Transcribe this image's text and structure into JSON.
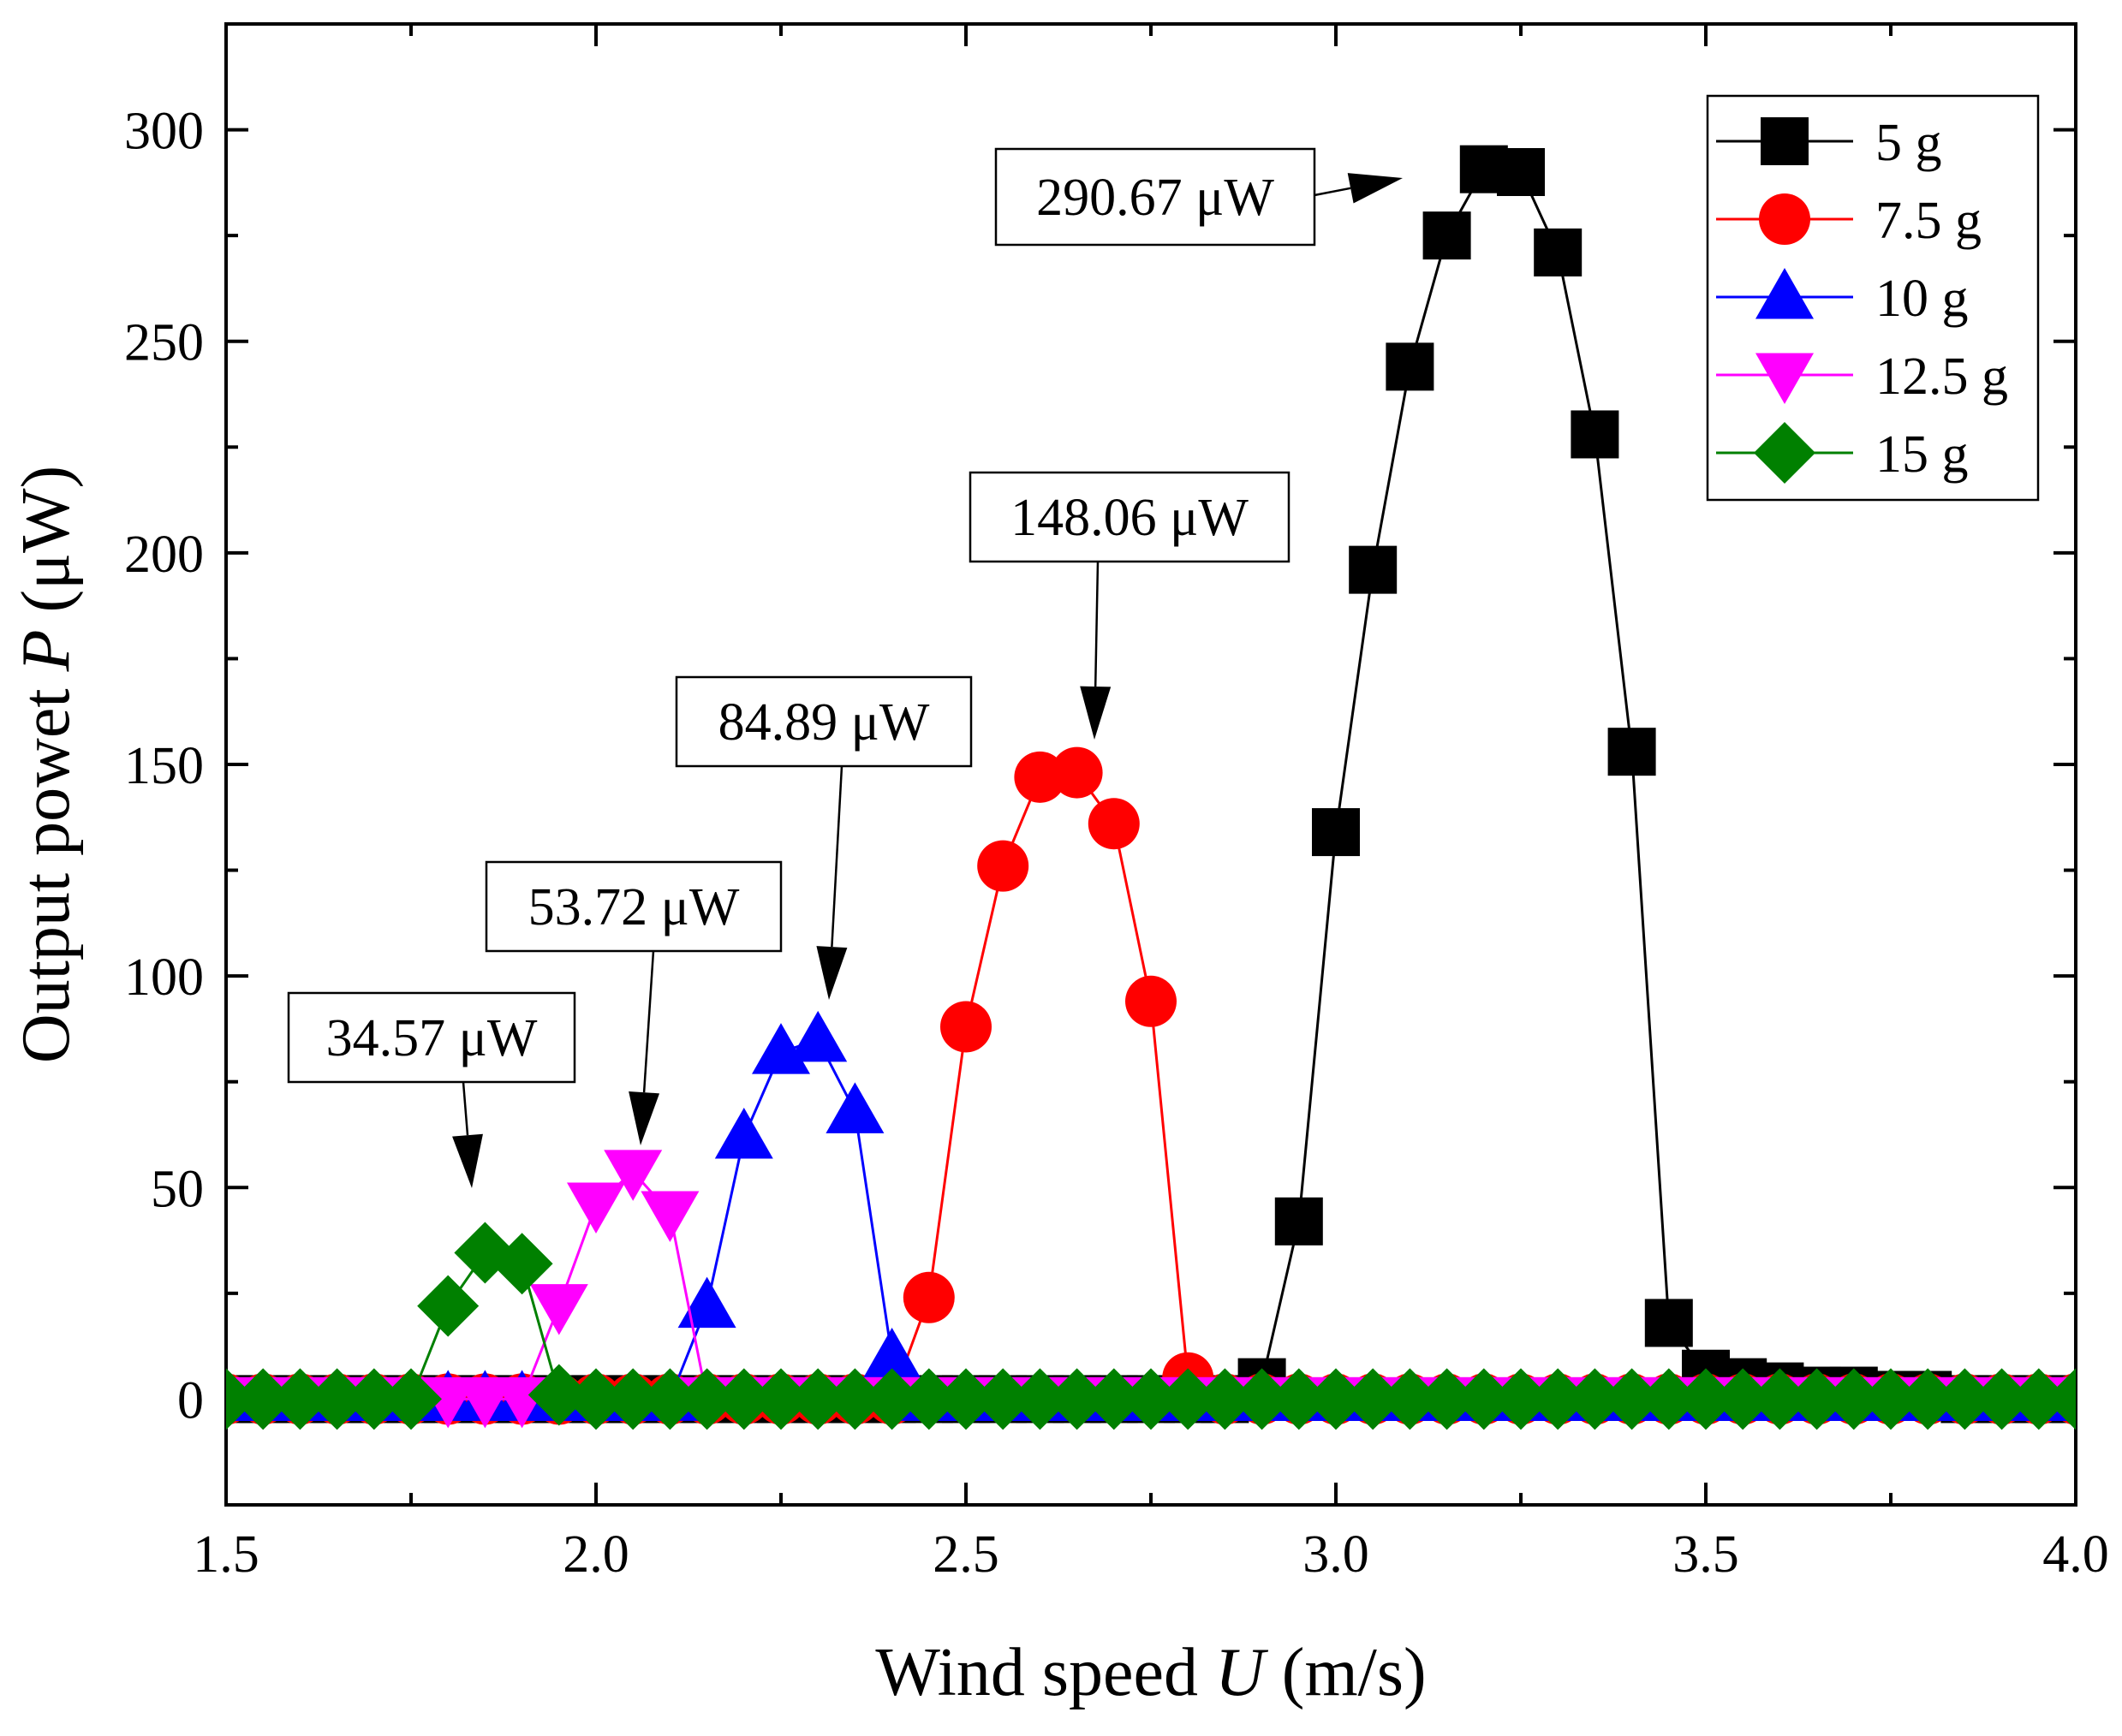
{
  "chart_data": {
    "type": "line",
    "title": "",
    "xlabel": "Wind speed U (m/s)",
    "xlabel_parts": [
      "Wind speed ",
      "U",
      " (m/s)"
    ],
    "ylabel": "Output powet P (μW)",
    "ylabel_parts": [
      "Output powet ",
      "P",
      " (μW)"
    ],
    "xlim": [
      1.5,
      4.0
    ],
    "ylim": [
      -25,
      325
    ],
    "xticks": [
      1.5,
      2.0,
      2.5,
      3.0,
      3.5,
      4.0
    ],
    "xtick_labels": [
      "1.5",
      "2.0",
      "2.5",
      "3.0",
      "3.5",
      "4.0"
    ],
    "yticks": [
      0,
      50,
      100,
      150,
      200,
      250,
      300
    ],
    "ytick_labels": [
      "0",
      "50",
      "100",
      "150",
      "200",
      "250",
      "300"
    ],
    "legend_position": "top-right",
    "series": [
      {
        "name": "5 g",
        "color": "#000000",
        "marker": "square",
        "x": [
          1.5,
          1.55,
          1.6,
          1.65,
          1.7,
          1.75,
          1.8,
          1.85,
          1.9,
          1.95,
          2.0,
          2.05,
          2.1,
          2.15,
          2.2,
          2.25,
          2.3,
          2.35,
          2.4,
          2.45,
          2.5,
          2.55,
          2.6,
          2.65,
          2.7,
          2.75,
          2.8,
          2.85,
          2.9,
          2.95,
          3.0,
          3.05,
          3.1,
          3.15,
          3.2,
          3.25,
          3.3,
          3.35,
          3.4,
          3.45,
          3.5,
          3.55,
          3.6,
          3.65,
          3.7,
          3.75,
          3.8,
          3.85,
          3.9,
          3.95,
          4.0
        ],
        "y": [
          0,
          0,
          0,
          0,
          0,
          0,
          0,
          0,
          0,
          0,
          0,
          0,
          0,
          0,
          0,
          0,
          0,
          0,
          0,
          0,
          0,
          0,
          0,
          0,
          0,
          0,
          0,
          0,
          4,
          42,
          134,
          196,
          244,
          275,
          290.67,
          290,
          271,
          228,
          153,
          18,
          6,
          4,
          3,
          2,
          2,
          1,
          1,
          0,
          0,
          0,
          0
        ]
      },
      {
        "name": "7.5 g",
        "color": "#ff0000",
        "marker": "circle",
        "x": [
          1.5,
          1.55,
          1.6,
          1.65,
          1.7,
          1.75,
          1.8,
          1.85,
          1.9,
          1.95,
          2.0,
          2.05,
          2.1,
          2.15,
          2.2,
          2.25,
          2.3,
          2.35,
          2.4,
          2.45,
          2.5,
          2.55,
          2.6,
          2.65,
          2.7,
          2.75,
          2.8,
          2.85,
          2.9,
          2.95,
          3.0,
          3.05,
          3.1,
          3.15,
          3.2,
          3.25,
          3.3,
          3.35,
          3.4,
          3.45,
          3.5,
          3.55,
          3.6,
          3.65,
          3.7,
          3.75,
          3.8,
          3.85,
          3.9,
          3.95,
          4.0
        ],
        "y": [
          0,
          0,
          0,
          0,
          0,
          0,
          0,
          0,
          0,
          0,
          0,
          0,
          0,
          0,
          0,
          0,
          0,
          0,
          0,
          24,
          88,
          126,
          147,
          148.06,
          136,
          94,
          5,
          0,
          0,
          0,
          0,
          0,
          0,
          0,
          0,
          0,
          0,
          0,
          0,
          0,
          0,
          0,
          0,
          0,
          0,
          0,
          0,
          0,
          0,
          0,
          0
        ]
      },
      {
        "name": "10 g",
        "color": "#0000ff",
        "marker": "triangle-up",
        "x": [
          1.5,
          1.55,
          1.6,
          1.65,
          1.7,
          1.75,
          1.8,
          1.85,
          1.9,
          1.95,
          2.0,
          2.05,
          2.1,
          2.15,
          2.2,
          2.25,
          2.3,
          2.35,
          2.4,
          2.45,
          2.5,
          2.55,
          2.6,
          2.65,
          2.7,
          2.75,
          2.8,
          2.85,
          2.9,
          2.95,
          3.0,
          3.05,
          3.1,
          3.15,
          3.2,
          3.25,
          3.3,
          3.35,
          3.4,
          3.45,
          3.5,
          3.55,
          3.6,
          3.65,
          3.7,
          3.75,
          3.8,
          3.85,
          3.9,
          3.95,
          4.0
        ],
        "y": [
          0,
          0,
          0,
          0,
          0,
          0,
          0,
          0,
          0,
          0,
          0,
          0,
          0,
          22,
          62,
          82,
          84.89,
          68,
          10,
          0,
          0,
          0,
          0,
          0,
          0,
          0,
          0,
          0,
          0,
          0,
          0,
          0,
          0,
          0,
          0,
          0,
          0,
          0,
          0,
          0,
          0,
          0,
          0,
          0,
          0,
          0,
          0,
          0,
          0,
          0,
          0
        ]
      },
      {
        "name": "12.5 g",
        "color": "#ff00ff",
        "marker": "triangle-down",
        "x": [
          1.5,
          1.55,
          1.6,
          1.65,
          1.7,
          1.75,
          1.8,
          1.85,
          1.9,
          1.95,
          2.0,
          2.05,
          2.1,
          2.15,
          2.2,
          2.25,
          2.3,
          2.35,
          2.4,
          2.45,
          2.5,
          2.55,
          2.6,
          2.65,
          2.7,
          2.75,
          2.8,
          2.85,
          2.9,
          2.95,
          3.0,
          3.05,
          3.1,
          3.15,
          3.2,
          3.25,
          3.3,
          3.35,
          3.4,
          3.45,
          3.5,
          3.55,
          3.6,
          3.65,
          3.7,
          3.75,
          3.8,
          3.85,
          3.9,
          3.95,
          4.0
        ],
        "y": [
          0,
          0,
          0,
          0,
          0,
          0,
          0,
          0,
          0,
          22,
          46,
          53.72,
          44,
          0,
          0,
          0,
          0,
          0,
          0,
          0,
          0,
          0,
          0,
          0,
          0,
          0,
          0,
          0,
          0,
          0,
          0,
          0,
          0,
          0,
          0,
          0,
          0,
          0,
          0,
          0,
          0,
          0,
          0,
          0,
          0,
          0,
          0,
          0,
          0,
          0,
          0
        ]
      },
      {
        "name": "15 g",
        "color": "#008000",
        "marker": "diamond",
        "x": [
          1.5,
          1.55,
          1.6,
          1.65,
          1.7,
          1.75,
          1.8,
          1.85,
          1.9,
          1.95,
          2.0,
          2.05,
          2.1,
          2.15,
          2.2,
          2.25,
          2.3,
          2.35,
          2.4,
          2.45,
          2.5,
          2.55,
          2.6,
          2.65,
          2.7,
          2.75,
          2.8,
          2.85,
          2.9,
          2.95,
          3.0,
          3.05,
          3.1,
          3.15,
          3.2,
          3.25,
          3.3,
          3.35,
          3.4,
          3.45,
          3.5,
          3.55,
          3.6,
          3.65,
          3.7,
          3.75,
          3.8,
          3.85,
          3.9,
          3.95,
          4.0
        ],
        "y": [
          0,
          0,
          0,
          0,
          0,
          0,
          22,
          34.57,
          32,
          1,
          0,
          0,
          0,
          0,
          0,
          0,
          0,
          0,
          0,
          0,
          0,
          0,
          0,
          0,
          0,
          0,
          0,
          0,
          0,
          0,
          0,
          0,
          0,
          0,
          0,
          0,
          0,
          0,
          0,
          0,
          0,
          0,
          0,
          0,
          0,
          0,
          0,
          0,
          0,
          0,
          0
        ]
      }
    ],
    "annotations": [
      {
        "text": "290.67 μW",
        "series": "5 g",
        "target": [
          3.2,
          290.67
        ]
      },
      {
        "text": "148.06 μW",
        "series": "7.5 g",
        "target": [
          2.65,
          148.06
        ]
      },
      {
        "text": "84.89 μW",
        "series": "10 g",
        "target": [
          2.3,
          84.89
        ]
      },
      {
        "text": "53.72 μW",
        "series": "12.5 g",
        "target": [
          2.05,
          53.72
        ]
      },
      {
        "text": "34.57 μW",
        "series": "15 g",
        "target": [
          1.85,
          34.57
        ]
      }
    ]
  }
}
